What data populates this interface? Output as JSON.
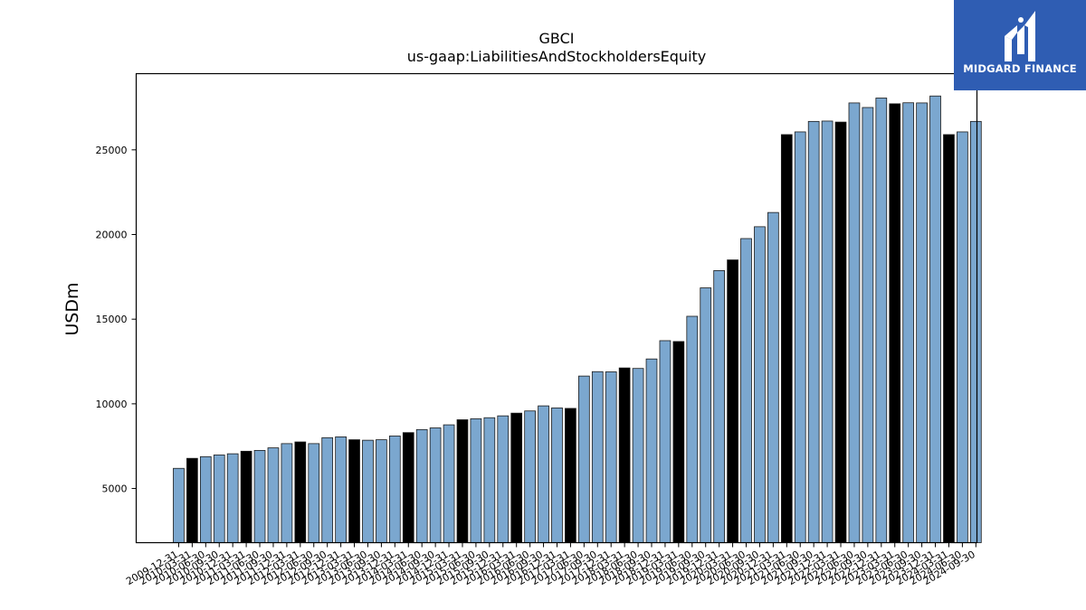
{
  "brand": {
    "name": "MIDGARD FINANCE",
    "logo_color": "#2f5db3"
  },
  "chart_data": {
    "type": "bar",
    "title": "GBCI",
    "subtitle": "us-gaap:LiabilitiesAndStockholdersEquity",
    "ylabel": "USDm",
    "xlabel": "",
    "ylim": [
      1800,
      29500
    ],
    "yticks": [
      5000,
      10000,
      15000,
      20000,
      25000
    ],
    "grid": false,
    "colors": {
      "annual": "#000000",
      "quarter": "#7ba7cf",
      "edge": "#1a1a1a"
    },
    "categories": [
      "2009-12-31",
      "2010-03-31",
      "2010-06-30",
      "2010-09-30",
      "2010-12-31",
      "2011-03-31",
      "2011-06-30",
      "2011-09-30",
      "2011-12-31",
      "2012-03-31",
      "2012-06-30",
      "2012-09-30",
      "2012-12-31",
      "2013-03-31",
      "2013-06-30",
      "2013-09-30",
      "2013-12-31",
      "2014-03-31",
      "2014-06-30",
      "2014-09-30",
      "2014-12-31",
      "2015-03-31",
      "2015-06-30",
      "2015-09-30",
      "2015-12-31",
      "2016-03-31",
      "2016-06-30",
      "2016-09-30",
      "2016-12-31",
      "2017-03-31",
      "2017-06-30",
      "2017-09-30",
      "2017-12-31",
      "2018-03-31",
      "2018-06-30",
      "2018-09-30",
      "2018-12-31",
      "2019-03-31",
      "2019-06-30",
      "2019-09-30",
      "2019-12-31",
      "2020-03-31",
      "2020-06-30",
      "2020-09-30",
      "2020-12-31",
      "2021-03-31",
      "2021-06-30",
      "2021-09-30",
      "2021-12-31",
      "2022-03-31",
      "2022-06-30",
      "2022-09-30",
      "2022-12-31",
      "2023-03-31",
      "2023-06-30",
      "2023-09-30",
      "2023-12-31",
      "2024-03-31",
      "2024-06-30",
      "2024-09-30"
    ],
    "x_tick_labels": [
      "2009-12-31",
      "2010-03-31",
      "2010-06-30",
      "2010-09-30",
      "2010-12-31",
      "2011-03-31",
      "2011-06-30",
      "2011-09-30",
      "2011-12-31",
      "2012-03-31",
      "2012-06-30",
      "2012-09-30",
      "2012-12-31",
      "2013-03-31",
      "2013-06-30",
      "2013-09-30",
      "2013-12-31",
      "2014-03-31",
      "2014-06-30",
      "2014-09-30",
      "2014-12-31",
      "2015-03-31",
      "2015-06-30",
      "2015-09-30",
      "2015-12-31",
      "2016-03-31",
      "2016-06-30",
      "2016-09-30",
      "2016-12-31",
      "2017-03-31",
      "2017-06-30",
      "2017-09-30",
      "2017-12-31",
      "2018-03-31",
      "2018-06-30",
      "2018-09-30",
      "2018-12-31",
      "2019-03-31",
      "2019-06-30",
      "2019-09-30",
      "2019-12-31",
      "2020-03-31",
      "2020-06-30",
      "2020-09-30",
      "2020-12-31",
      "2021-03-31",
      "2021-06-30",
      "2021-09-30",
      "2021-12-31",
      "2022-03-31",
      "2022-06-30",
      "2022-09-30",
      "2022-12-31",
      "2023-03-31",
      "2023-06-30",
      "2023-09-30",
      "2023-12-31",
      "2024-03-31",
      "2024-06-30",
      "2024-09-30"
    ],
    "values": [
      6190,
      6780,
      6880,
      6980,
      7050,
      7200,
      7250,
      7400,
      7650,
      7750,
      7650,
      8000,
      8050,
      7880,
      7850,
      7880,
      8100,
      8300,
      8480,
      8580,
      8760,
      9060,
      9120,
      9180,
      9290,
      9450,
      9580,
      9880,
      9760,
      9730,
      11640,
      11900,
      11890,
      12120,
      12090,
      12650,
      13730,
      13680,
      15170,
      16850,
      17870,
      18500,
      19760,
      20460,
      21300,
      25900,
      26060,
      26680,
      26700,
      26640,
      27770,
      27500,
      28060,
      27720,
      27780,
      27770,
      28180,
      25900,
      26060,
      26680
    ],
    "highlight": [
      0,
      1,
      0,
      0,
      0,
      1,
      0,
      0,
      0,
      1,
      0,
      0,
      0,
      1,
      0,
      0,
      0,
      1,
      0,
      0,
      0,
      1,
      0,
      0,
      0,
      1,
      0,
      0,
      0,
      1,
      0,
      0,
      0,
      1,
      0,
      0,
      0,
      1,
      0,
      0,
      0,
      1,
      0,
      0,
      0,
      1,
      0,
      0,
      0,
      1,
      0,
      0,
      0,
      1,
      0,
      0,
      0,
      1,
      0,
      0
    ]
  }
}
